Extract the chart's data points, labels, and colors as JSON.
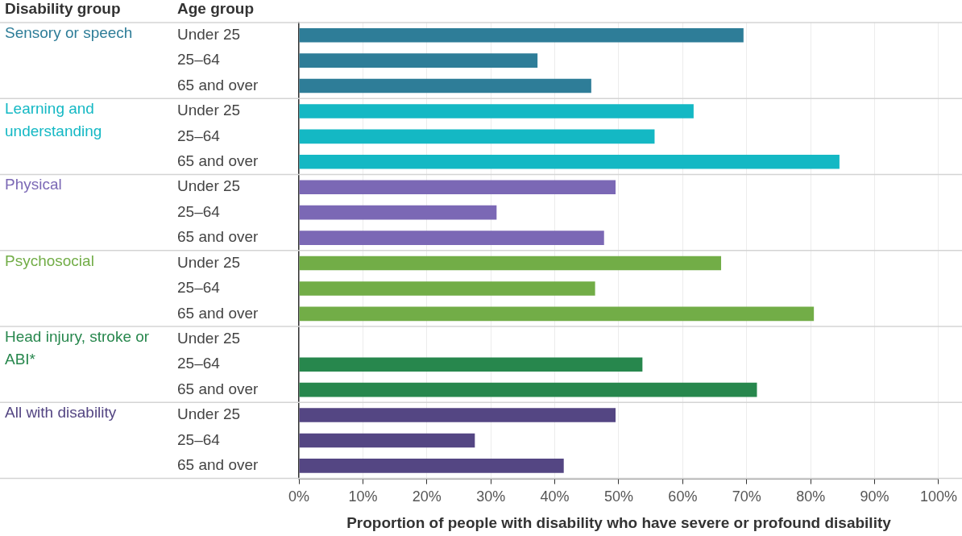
{
  "chart_data": {
    "type": "bar",
    "orientation": "horizontal",
    "stacked": true,
    "legend": false,
    "grid": "x",
    "legend_title": "Disability group",
    "annotations": [
      "Age group"
    ],
    "xlabel": "Proportion of people with disability who have severe or profound disability",
    "categories": [
      "Under 25",
      "25–64",
      "65 and over",
      "Under 25",
      "25–64",
      "65 and over",
      "Under 25",
      "25–64",
      "65 and over",
      "Under 25",
      "25–64",
      "65 and over",
      "Under 25",
      "25–64",
      "65 and over",
      "Under 25",
      "25–64",
      "65 and over"
    ],
    "xlim": [
      0,
      100
    ],
    "xticks": [
      {
        "value": 0,
        "label": "0%"
      },
      {
        "value": 10,
        "label": "10%"
      },
      {
        "value": 20,
        "label": "20%"
      },
      {
        "value": 30,
        "label": "30%"
      },
      {
        "value": 40,
        "label": "40%"
      },
      {
        "value": 50,
        "label": "50%"
      },
      {
        "value": 60,
        "label": "60%"
      },
      {
        "value": 70,
        "label": "70%"
      },
      {
        "value": 80,
        "label": "80%"
      },
      {
        "value": 90,
        "label": "90%"
      },
      {
        "value": 100,
        "label": "100%"
      }
    ],
    "series": [
      {
        "name": "Sensory or speech",
        "color": "#2e7d98",
        "values": [
          69.5,
          37.3,
          45.7,
          null,
          null,
          null,
          null,
          null,
          null,
          null,
          null,
          null,
          null,
          null,
          null,
          null,
          null,
          null
        ]
      },
      {
        "name": "Learning and understanding",
        "color": "#14b8c4",
        "values": [
          null,
          null,
          null,
          61.7,
          55.6,
          84.5,
          null,
          null,
          null,
          null,
          null,
          null,
          null,
          null,
          null,
          null,
          null,
          null
        ]
      },
      {
        "name": "Physical",
        "color": "#7b68b5",
        "values": [
          null,
          null,
          null,
          null,
          null,
          null,
          49.5,
          30.9,
          47.7,
          null,
          null,
          null,
          null,
          null,
          null,
          null,
          null,
          null
        ]
      },
      {
        "name": "Psychosocial",
        "color": "#72ad47",
        "values": [
          null,
          null,
          null,
          null,
          null,
          null,
          null,
          null,
          null,
          66.0,
          46.3,
          80.5,
          null,
          null,
          null,
          null,
          null,
          null
        ]
      },
      {
        "name": "Head injury, stroke or ABI*",
        "color": "#27874d",
        "values": [
          null,
          null,
          null,
          null,
          null,
          null,
          null,
          null,
          null,
          null,
          null,
          null,
          null,
          53.7,
          71.6,
          null,
          null,
          null
        ]
      },
      {
        "name": "All with disability",
        "color": "#544683",
        "values": [
          null,
          null,
          null,
          null,
          null,
          null,
          null,
          null,
          null,
          null,
          null,
          null,
          null,
          null,
          null,
          49.5,
          27.5,
          41.4
        ]
      }
    ]
  }
}
